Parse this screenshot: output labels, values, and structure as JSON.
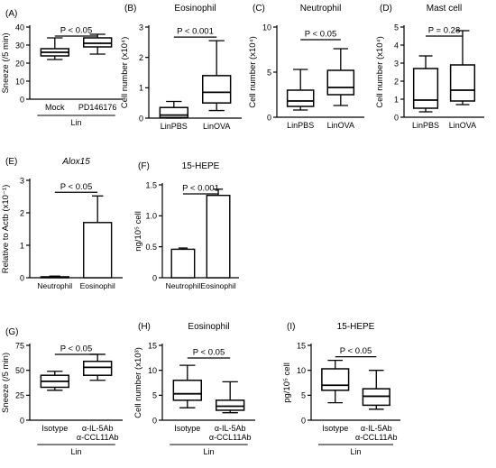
{
  "chart_data": [
    {
      "panel": "(A)",
      "type": "box",
      "title": "",
      "title_italic": false,
      "ylabel": "Sneeze (/5 min)",
      "ylim": [
        0,
        40
      ],
      "yticks": [
        0,
        10,
        20,
        30,
        40
      ],
      "categories": [
        "Mock",
        "PD146176"
      ],
      "group_label": "Lin",
      "boxes": [
        {
          "min": 22,
          "q1": 24,
          "median": 26,
          "q3": 28,
          "max": 34
        },
        {
          "min": 25,
          "q1": 29,
          "median": 31,
          "q3": 34,
          "max": 36
        }
      ],
      "sig": {
        "text": "P < 0.05",
        "from": 0,
        "to": 1
      }
    },
    {
      "panel": "(B)",
      "type": "box",
      "title": "Eosinophil",
      "title_italic": false,
      "ylabel": "Cell number (x10⁴)",
      "ylim": [
        0,
        3
      ],
      "yticks": [
        0,
        1,
        2,
        3
      ],
      "categories": [
        "LinPBS",
        "LinOVA"
      ],
      "group_label": "",
      "boxes": [
        {
          "min": 0.0,
          "q1": 0.02,
          "median": 0.1,
          "q3": 0.35,
          "max": 0.55
        },
        {
          "min": 0.25,
          "q1": 0.5,
          "median": 0.85,
          "q3": 1.4,
          "max": 2.55
        }
      ],
      "sig": {
        "text": "P < 0.001",
        "from": 0,
        "to": 1
      }
    },
    {
      "panel": "(C)",
      "type": "box",
      "title": "Neutrophil",
      "title_italic": false,
      "ylabel": "Cell number (x10⁴)",
      "ylim": [
        0,
        10
      ],
      "yticks": [
        0,
        5,
        10
      ],
      "categories": [
        "LinPBS",
        "LinOVA"
      ],
      "group_label": "",
      "boxes": [
        {
          "min": 0.8,
          "q1": 1.2,
          "median": 1.8,
          "q3": 3.0,
          "max": 5.3
        },
        {
          "min": 1.3,
          "q1": 2.5,
          "median": 3.3,
          "q3": 5.2,
          "max": 7.6
        }
      ],
      "sig": {
        "text": "P < 0.05",
        "from": 0,
        "to": 1
      }
    },
    {
      "panel": "(D)",
      "type": "box",
      "title": "Mast cell",
      "title_italic": false,
      "ylabel": "Cell number (x10⁴)",
      "ylim": [
        0,
        5
      ],
      "yticks": [
        0,
        1,
        2,
        3,
        4,
        5
      ],
      "categories": [
        "LinPBS",
        "LinOVA"
      ],
      "group_label": "",
      "boxes": [
        {
          "min": 0.3,
          "q1": 0.5,
          "median": 0.95,
          "q3": 2.7,
          "max": 3.4
        },
        {
          "min": 0.7,
          "q1": 0.9,
          "median": 1.5,
          "q3": 2.9,
          "max": 4.8
        }
      ],
      "sig": {
        "text": "P = 0.28",
        "from": 0,
        "to": 1
      }
    },
    {
      "panel": "(E)",
      "type": "bar",
      "title": "Alox15",
      "title_italic": true,
      "ylabel": "Relative to Actb (x10⁻¹)",
      "ylim": [
        0,
        3
      ],
      "yticks": [
        0,
        1,
        2,
        3
      ],
      "categories": [
        "Neutrophil",
        "Eosinophil"
      ],
      "group_label": "",
      "values": [
        0.03,
        1.7
      ],
      "errors": [
        0.02,
        0.82
      ],
      "sig": {
        "text": "P < 0.05",
        "from": 0,
        "to": 1
      }
    },
    {
      "panel": "(F)",
      "type": "bar",
      "title": "15-HEPE",
      "title_italic": false,
      "ylabel": "ng/10⁵ cell",
      "ylim": [
        0,
        1.5
      ],
      "yticks": [
        0,
        0.5,
        1.0,
        1.5
      ],
      "categories": [
        "Neutrophil",
        "Eosinophil"
      ],
      "group_label": "",
      "values": [
        0.46,
        1.33
      ],
      "errors": [
        0.02,
        0.1
      ],
      "sig": {
        "text": "P < 0.001",
        "from": 0,
        "to": 1
      }
    },
    {
      "panel": "(G)",
      "type": "box",
      "title": "",
      "title_italic": false,
      "ylabel": "Sneeze (/5 min)",
      "ylim": [
        0,
        75
      ],
      "yticks": [
        0,
        25,
        50,
        75
      ],
      "categories": [
        "Isotype",
        "α-IL-5Ab\nα-CCL11Ab"
      ],
      "group_label": "Lin",
      "boxes": [
        {
          "min": 30,
          "q1": 33,
          "median": 39,
          "q3": 45,
          "max": 49
        },
        {
          "min": 40,
          "q1": 45,
          "median": 53,
          "q3": 59,
          "max": 66
        }
      ],
      "sig": {
        "text": "P < 0.05",
        "from": 0,
        "to": 1
      }
    },
    {
      "panel": "(H)",
      "type": "box",
      "title": "Eosinophil",
      "title_italic": false,
      "ylabel": "Cell number (x10³)",
      "ylim": [
        0,
        15
      ],
      "yticks": [
        0,
        5,
        10,
        15
      ],
      "categories": [
        "Isotype",
        "α-IL-5Ab\nα-CCL11Ab"
      ],
      "group_label": "Lin",
      "boxes": [
        {
          "min": 2.5,
          "q1": 4,
          "median": 5.3,
          "q3": 8,
          "max": 11
        },
        {
          "min": 1.5,
          "q1": 2,
          "median": 2.8,
          "q3": 4,
          "max": 7.7
        }
      ],
      "sig": {
        "text": "P < 0.05",
        "from": 0,
        "to": 1
      }
    },
    {
      "panel": "(I)",
      "type": "box",
      "title": "15-HEPE",
      "title_italic": false,
      "ylabel": "pg/10⁵ cell",
      "ylim": [
        0,
        15
      ],
      "yticks": [
        0,
        5,
        10,
        15
      ],
      "categories": [
        "Isotype",
        "α-IL-5Ab\nα-CCL11Ab"
      ],
      "group_label": "Lin",
      "boxes": [
        {
          "min": 3.5,
          "q1": 6,
          "median": 7,
          "q3": 10.3,
          "max": 12
        },
        {
          "min": 2.2,
          "q1": 3,
          "median": 4.8,
          "q3": 6.3,
          "max": 10
        }
      ],
      "sig": {
        "text": "P < 0.05",
        "from": 0,
        "to": 1
      }
    }
  ]
}
